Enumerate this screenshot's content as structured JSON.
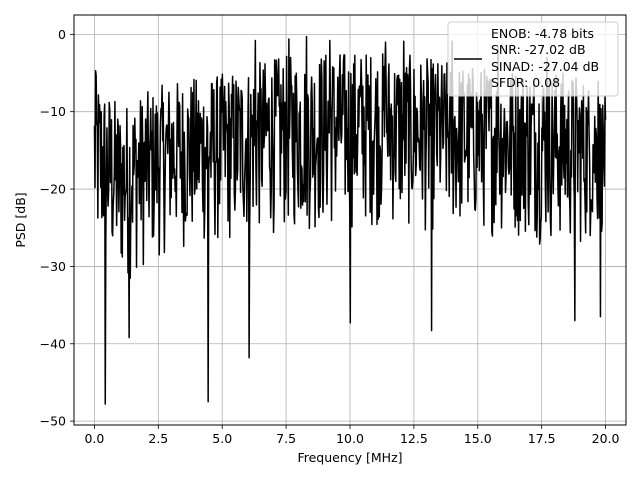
{
  "chart_data": {
    "type": "line",
    "title": "",
    "xlabel": "Frequency [MHz]",
    "ylabel": "PSD [dB]",
    "xlim": [
      -0.8,
      20.8
    ],
    "ylim": [
      -50.5,
      2.5
    ],
    "xticks": [
      0.0,
      2.5,
      5.0,
      7.5,
      10.0,
      12.5,
      15.0,
      17.5,
      20.0
    ],
    "xtick_labels": [
      "0.0",
      "2.5",
      "5.0",
      "7.5",
      "10.0",
      "12.5",
      "15.0",
      "17.5",
      "20.0"
    ],
    "yticks": [
      0,
      -10,
      -20,
      -30,
      -40,
      -50
    ],
    "ytick_labels": [
      "0",
      "−10",
      "−20",
      "−30",
      "−40",
      "−50"
    ],
    "grid": true,
    "legend_placement": "top-right",
    "legend_lines": [
      "ENOB: -4.78 bits",
      "SNR: -27.02 dB",
      "SINAD: -27.04 dB",
      "SFDR: 0.08"
    ],
    "line_color": "#000000",
    "series": [
      {
        "x_start": 0.0,
        "x_end": 20.0,
        "samples": 900,
        "envelope_upper": [
          [
            0,
            -5
          ],
          [
            1,
            -9
          ],
          [
            3,
            -6
          ],
          [
            5,
            -5
          ],
          [
            7,
            -3
          ],
          [
            9,
            -2
          ],
          [
            11,
            -2
          ],
          [
            13,
            -3
          ],
          [
            15,
            -4
          ],
          [
            17,
            -4
          ],
          [
            19,
            -5
          ],
          [
            20,
            -8
          ]
        ],
        "envelope_lower": [
          [
            0,
            -30
          ],
          [
            1,
            -33
          ],
          [
            3,
            -28
          ],
          [
            5,
            -28
          ],
          [
            7,
            -26
          ],
          [
            9,
            -26
          ],
          [
            11,
            -25
          ],
          [
            13,
            -26
          ],
          [
            15,
            -26
          ],
          [
            17,
            -27
          ],
          [
            19,
            -28
          ],
          [
            20,
            -26
          ]
        ],
        "deep_dips": [
          [
            0.42,
            -47.8
          ],
          [
            1.35,
            -39.2
          ],
          [
            4.45,
            -47.5
          ],
          [
            6.05,
            -41.8
          ],
          [
            10.0,
            -37.3
          ],
          [
            13.2,
            -38.3
          ],
          [
            18.8,
            -37.0
          ],
          [
            19.8,
            -36.5
          ]
        ],
        "peaks": [
          [
            0.05,
            -4.7
          ],
          [
            6.3,
            -0.8
          ],
          [
            7.6,
            -0.6
          ],
          [
            8.3,
            -0.3
          ],
          [
            9.2,
            -0.8
          ],
          [
            11.4,
            -1.0
          ],
          [
            12.1,
            -0.9
          ],
          [
            14.0,
            -0.9
          ],
          [
            15.8,
            -1.5
          ],
          [
            17.7,
            -3.0
          ],
          [
            19.7,
            -6.1
          ]
        ]
      }
    ]
  }
}
